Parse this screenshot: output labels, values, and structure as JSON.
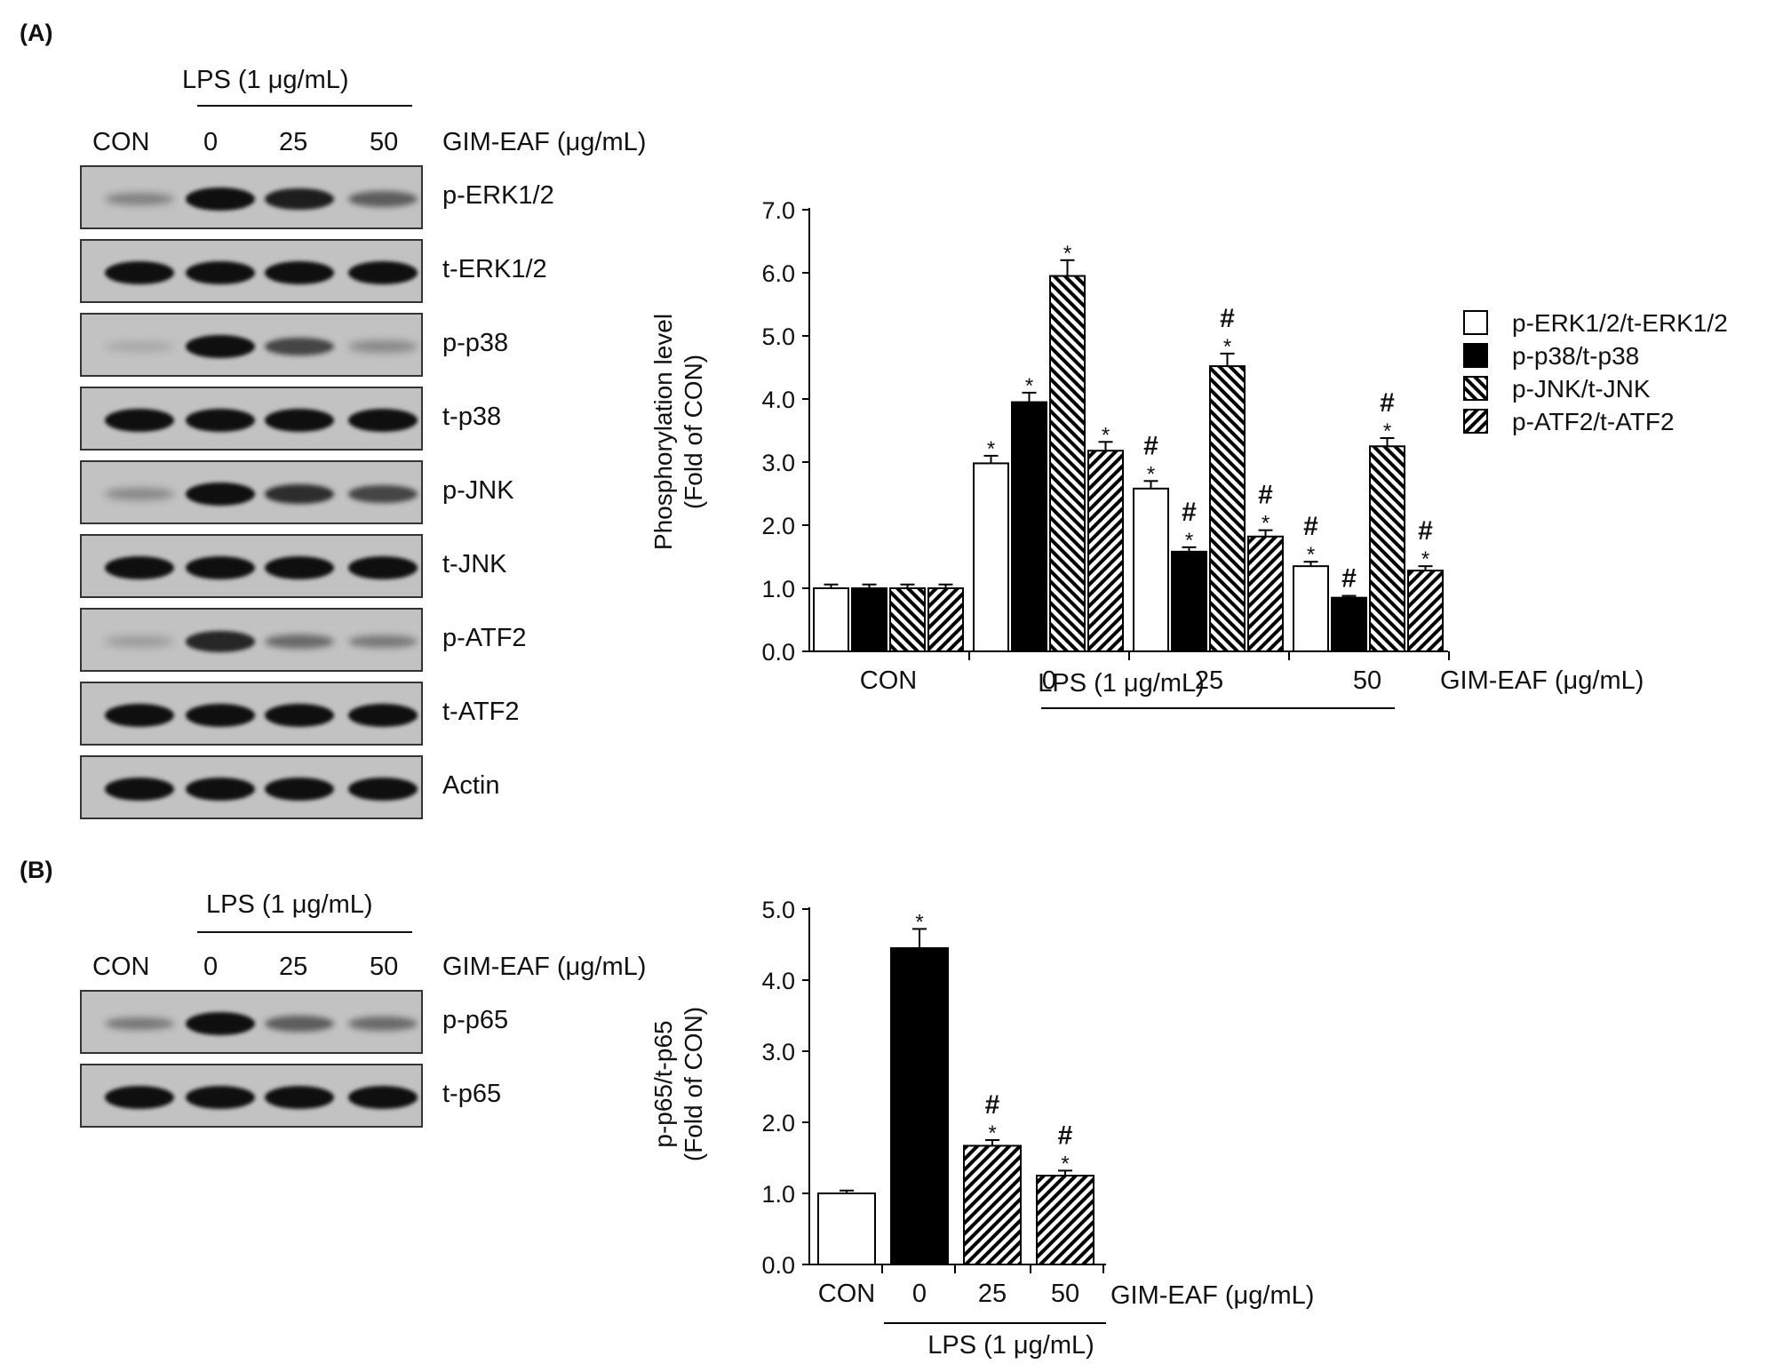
{
  "panel_a": {
    "label": "(A)",
    "blot": {
      "treatment_header": "LPS (1 μg/mL)",
      "lanes": [
        "CON",
        "0",
        "25",
        "50"
      ],
      "dose_label": "GIM-EAF (μg/mL)",
      "rows": [
        {
          "label": "p-ERK1/2",
          "intensity": [
            0.25,
            1.0,
            0.9,
            0.5
          ]
        },
        {
          "label": "t-ERK1/2",
          "intensity": [
            1.0,
            1.0,
            1.0,
            1.0
          ]
        },
        {
          "label": "p-p38",
          "intensity": [
            0.02,
            1.0,
            0.65,
            0.2
          ]
        },
        {
          "label": "t-p38",
          "intensity": [
            1.0,
            1.0,
            1.0,
            1.0
          ]
        },
        {
          "label": "p-JNK",
          "intensity": [
            0.2,
            1.0,
            0.8,
            0.65
          ]
        },
        {
          "label": "t-JNK",
          "intensity": [
            1.0,
            1.0,
            1.0,
            1.0
          ]
        },
        {
          "label": "p-ATF2",
          "intensity": [
            0.1,
            0.85,
            0.4,
            0.3
          ]
        },
        {
          "label": "t-ATF2",
          "intensity": [
            1.0,
            1.0,
            1.0,
            1.0
          ]
        },
        {
          "label": "Actin",
          "intensity": [
            1.0,
            1.0,
            1.0,
            1.0
          ]
        }
      ]
    }
  },
  "panel_b": {
    "label": "(B)",
    "blot": {
      "treatment_header": "LPS (1 μg/mL)",
      "lanes": [
        "CON",
        "0",
        "25",
        "50"
      ],
      "dose_label": "GIM-EAF (μg/mL)",
      "rows": [
        {
          "label": "p-p65",
          "intensity": [
            0.3,
            1.0,
            0.5,
            0.4
          ]
        },
        {
          "label": "t-p65",
          "intensity": [
            1.0,
            1.0,
            1.0,
            1.0
          ]
        }
      ]
    }
  },
  "chart_data": [
    {
      "type": "bar",
      "categories": [
        "CON",
        "0",
        "25",
        "50"
      ],
      "xlabel": "GIM-EAF (μg/mL)",
      "group_label": "LPS (1 μg/mL)",
      "ylabel": [
        "Phosphorylation level",
        "(Fold of CON)"
      ],
      "ylim": [
        0,
        7
      ],
      "yticks": [
        "0.0",
        "1.0",
        "2.0",
        "3.0",
        "4.0",
        "5.0",
        "6.0",
        "7.0"
      ],
      "legend_position": "right",
      "series": [
        {
          "name": "p-ERK1/2/t-ERK1/2",
          "fill": "white",
          "values": [
            1.0,
            2.98,
            2.58,
            1.35
          ],
          "errors": [
            0.06,
            0.12,
            0.12,
            0.07
          ],
          "marks": [
            "",
            "*",
            "#*",
            "#*"
          ]
        },
        {
          "name": "p-p38/t-p38",
          "fill": "black",
          "values": [
            1.0,
            3.95,
            1.58,
            0.85
          ],
          "errors": [
            0.06,
            0.15,
            0.07,
            0.03
          ],
          "marks": [
            "",
            "*",
            "#*",
            "#"
          ]
        },
        {
          "name": "p-JNK/t-JNK",
          "fill": "backslash",
          "values": [
            1.0,
            5.95,
            4.52,
            3.25
          ],
          "errors": [
            0.06,
            0.25,
            0.2,
            0.13
          ],
          "marks": [
            "",
            "*",
            "#*",
            "#*"
          ]
        },
        {
          "name": "p-ATF2/t-ATF2",
          "fill": "slash",
          "values": [
            1.0,
            3.18,
            1.82,
            1.28
          ],
          "errors": [
            0.06,
            0.14,
            0.1,
            0.07
          ],
          "marks": [
            "",
            "*",
            "#*",
            "#*"
          ]
        }
      ]
    },
    {
      "type": "bar",
      "categories": [
        "CON",
        "0",
        "25",
        "50"
      ],
      "xlabel": "GIM-EAF (μg/mL)",
      "group_label": "LPS (1 μg/mL)",
      "ylabel": [
        "p-p65/t-p65",
        "(Fold of CON)"
      ],
      "ylim": [
        0,
        5
      ],
      "yticks": [
        "0.0",
        "1.0",
        "2.0",
        "3.0",
        "4.0",
        "5.0"
      ],
      "series": [
        {
          "name": "",
          "values": [
            1.0,
            4.45,
            1.67,
            1.25
          ],
          "errors": [
            0.04,
            0.27,
            0.08,
            0.07
          ],
          "fills": [
            "white",
            "black",
            "slash",
            "slash"
          ],
          "marks": [
            "",
            "*",
            "#*",
            "#*"
          ]
        }
      ]
    }
  ]
}
